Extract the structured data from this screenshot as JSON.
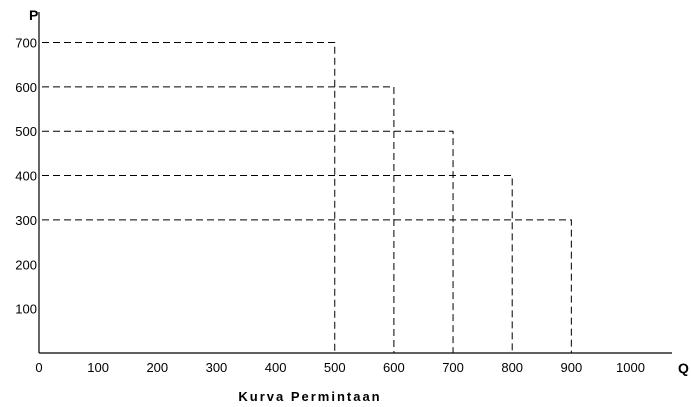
{
  "chart_data": {
    "type": "line",
    "title": "Kurva Permintaan",
    "xlabel": "Q",
    "ylabel": "P",
    "xlim": [
      0,
      1000
    ],
    "ylim": [
      0,
      700
    ],
    "x_ticks": [
      "0",
      "100",
      "200",
      "300",
      "400",
      "500",
      "600",
      "700",
      "800",
      "900",
      "1000"
    ],
    "y_ticks": [
      "100",
      "200",
      "300",
      "400",
      "500",
      "600",
      "700"
    ],
    "grid": false,
    "legend": "none",
    "points": [
      {
        "q": 500,
        "p": 700
      },
      {
        "q": 600,
        "p": 600
      },
      {
        "q": 700,
        "p": 500
      },
      {
        "q": 800,
        "p": 400
      },
      {
        "q": 900,
        "p": 300
      }
    ],
    "line_style": "dashed",
    "color": "#000000"
  }
}
